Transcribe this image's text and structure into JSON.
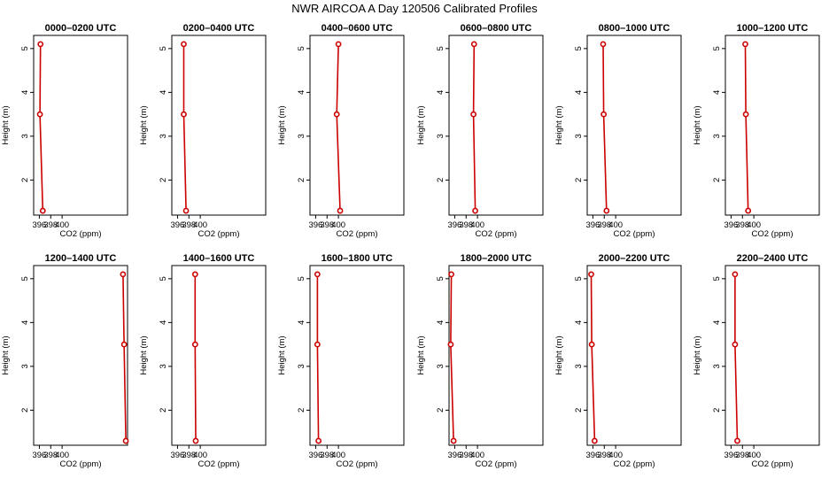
{
  "title": "NWR AIRCOA A  Day 120506  Calibrated Profiles",
  "colors": {
    "series": "#cc0000",
    "axis": "#000000"
  },
  "chart_data": [
    {
      "type": "line",
      "title": "0000–0200 UTC",
      "xlabel": "CO2 (ppm)",
      "ylabel": "Height (m)",
      "xlim": [
        395,
        411.5
      ],
      "ylim": [
        1.2,
        5.3
      ],
      "xticks": [
        396,
        398,
        400
      ],
      "yticks": [
        2,
        3,
        4,
        5
      ],
      "x": [
        396.6,
        396.1,
        396.2
      ],
      "y": [
        1.3,
        3.5,
        5.1
      ]
    },
    {
      "type": "line",
      "title": "0200–0400 UTC",
      "xlabel": "CO2 (ppm)",
      "ylabel": "Height (m)",
      "xlim": [
        395,
        411.5
      ],
      "ylim": [
        1.2,
        5.3
      ],
      "xticks": [
        396,
        398,
        400
      ],
      "yticks": [
        2,
        3,
        4,
        5
      ],
      "x": [
        397.5,
        397.1,
        397.1
      ],
      "y": [
        1.3,
        3.5,
        5.1
      ]
    },
    {
      "type": "line",
      "title": "0400–0600 UTC",
      "xlabel": "CO2 (ppm)",
      "ylabel": "Height (m)",
      "xlim": [
        395,
        411.5
      ],
      "ylim": [
        1.2,
        5.3
      ],
      "xticks": [
        396,
        398,
        400
      ],
      "yticks": [
        2,
        3,
        4,
        5
      ],
      "x": [
        400.3,
        399.7,
        400.0
      ],
      "y": [
        1.3,
        3.5,
        5.1
      ]
    },
    {
      "type": "line",
      "title": "0600–0800 UTC",
      "xlabel": "CO2 (ppm)",
      "ylabel": "Height (m)",
      "xlim": [
        395,
        411.5
      ],
      "ylim": [
        1.2,
        5.3
      ],
      "xticks": [
        396,
        398,
        400
      ],
      "yticks": [
        2,
        3,
        4,
        5
      ],
      "x": [
        399.6,
        399.3,
        399.4
      ],
      "y": [
        1.3,
        3.5,
        5.1
      ]
    },
    {
      "type": "line",
      "title": "0800–1000 UTC",
      "xlabel": "CO2 (ppm)",
      "ylabel": "Height (m)",
      "xlim": [
        395,
        411.5
      ],
      "ylim": [
        1.2,
        5.3
      ],
      "xticks": [
        396,
        398,
        400
      ],
      "yticks": [
        2,
        3,
        4,
        5
      ],
      "x": [
        398.4,
        397.9,
        397.8
      ],
      "y": [
        1.3,
        3.5,
        5.1
      ]
    },
    {
      "type": "line",
      "title": "1000–1200 UTC",
      "xlabel": "CO2 (ppm)",
      "ylabel": "Height (m)",
      "xlim": [
        395,
        411.5
      ],
      "ylim": [
        1.2,
        5.3
      ],
      "xticks": [
        396,
        398,
        400
      ],
      "yticks": [
        2,
        3,
        4,
        5
      ],
      "x": [
        399.0,
        398.6,
        398.5
      ],
      "y": [
        1.3,
        3.5,
        5.1
      ]
    },
    {
      "type": "line",
      "title": "1200–1400 UTC",
      "xlabel": "CO2 (ppm)",
      "ylabel": "Height (m)",
      "xlim": [
        395,
        411.5
      ],
      "ylim": [
        1.2,
        5.3
      ],
      "xticks": [
        396,
        398,
        400
      ],
      "yticks": [
        2,
        3,
        4,
        5
      ],
      "x": [
        411.2,
        410.9,
        410.7
      ],
      "y": [
        1.3,
        3.5,
        5.1
      ]
    },
    {
      "type": "line",
      "title": "1400–1600 UTC",
      "xlabel": "CO2 (ppm)",
      "ylabel": "Height (m)",
      "xlim": [
        395,
        411.5
      ],
      "ylim": [
        1.2,
        5.3
      ],
      "xticks": [
        396,
        398,
        400
      ],
      "yticks": [
        2,
        3,
        4,
        5
      ],
      "x": [
        399.2,
        399.1,
        399.1
      ],
      "y": [
        1.3,
        3.5,
        5.1
      ]
    },
    {
      "type": "line",
      "title": "1600–1800 UTC",
      "xlabel": "CO2 (ppm)",
      "ylabel": "Height (m)",
      "xlim": [
        395,
        411.5
      ],
      "ylim": [
        1.2,
        5.3
      ],
      "xticks": [
        396,
        398,
        400
      ],
      "yticks": [
        2,
        3,
        4,
        5
      ],
      "x": [
        396.5,
        396.3,
        396.3
      ],
      "y": [
        1.3,
        3.5,
        5.1
      ]
    },
    {
      "type": "line",
      "title": "1800–2000 UTC",
      "xlabel": "CO2 (ppm)",
      "ylabel": "Height (m)",
      "xlim": [
        395,
        411.5
      ],
      "ylim": [
        1.2,
        5.3
      ],
      "xticks": [
        396,
        398,
        400
      ],
      "yticks": [
        2,
        3,
        4,
        5
      ],
      "x": [
        395.8,
        395.3,
        395.4
      ],
      "y": [
        1.3,
        3.5,
        5.1
      ]
    },
    {
      "type": "line",
      "title": "2000–2200 UTC",
      "xlabel": "CO2 (ppm)",
      "ylabel": "Height (m)",
      "xlim": [
        395,
        411.5
      ],
      "ylim": [
        1.2,
        5.3
      ],
      "xticks": [
        396,
        398,
        400
      ],
      "yticks": [
        2,
        3,
        4,
        5
      ],
      "x": [
        396.3,
        395.8,
        395.7
      ],
      "y": [
        1.3,
        3.5,
        5.1
      ]
    },
    {
      "type": "line",
      "title": "2200–2400 UTC",
      "xlabel": "CO2 (ppm)",
      "ylabel": "Height (m)",
      "xlim": [
        395,
        411.5
      ],
      "ylim": [
        1.2,
        5.3
      ],
      "xticks": [
        396,
        398,
        400
      ],
      "yticks": [
        2,
        3,
        4,
        5
      ],
      "x": [
        397.1,
        396.7,
        396.7
      ],
      "y": [
        1.3,
        3.5,
        5.1
      ]
    }
  ]
}
